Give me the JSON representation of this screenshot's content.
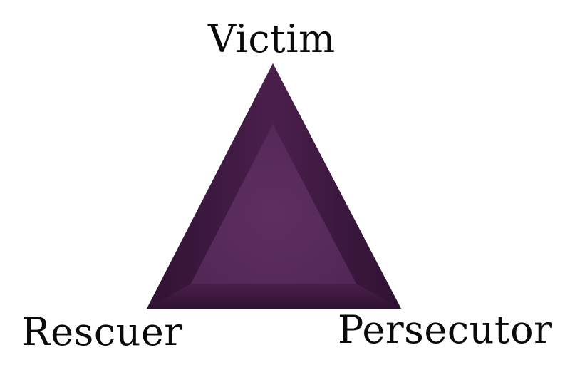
{
  "diagram": {
    "type": "drama-triangle",
    "colors": {
      "triangle_fill": "#5c2d5e",
      "triangle_dark": "#2f1232",
      "triangle_mid": "#4a1f4c",
      "label_text": "#0a0a0a",
      "background": "#ffffff"
    },
    "vertices": {
      "top": {
        "label": "Victim"
      },
      "bottom_left": {
        "label": "Rescuer"
      },
      "bottom_right": {
        "label": "Persecutor"
      }
    }
  }
}
